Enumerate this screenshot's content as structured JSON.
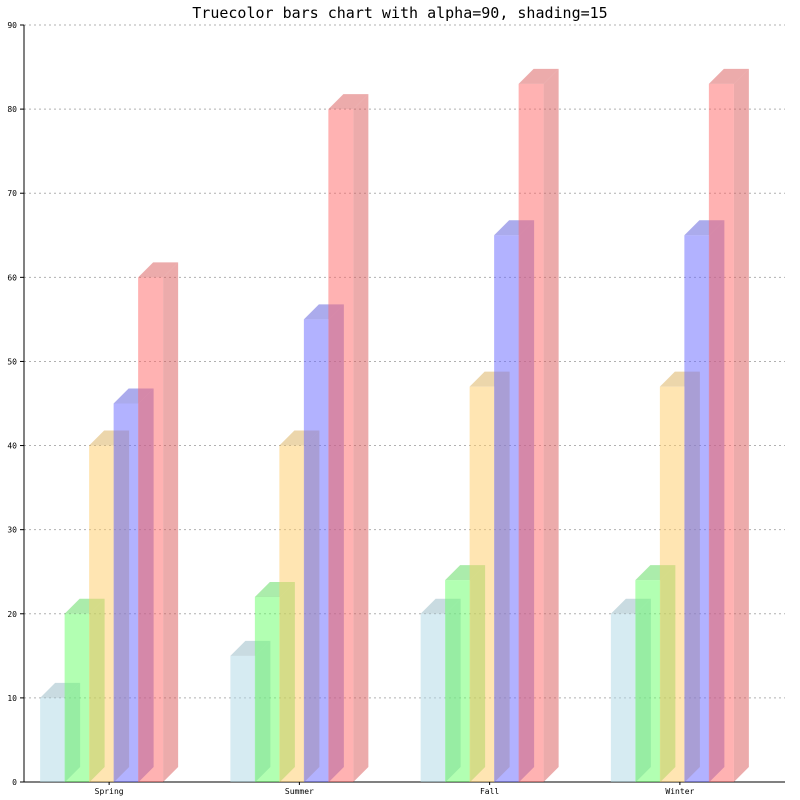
{
  "chart_data": {
    "type": "bar",
    "title": "Truecolor bars chart with alpha=90, shading=15",
    "xlabel": "",
    "ylabel": "",
    "ylim": [
      0,
      90
    ],
    "y_ticks": [
      "0",
      "10",
      "20",
      "30",
      "40",
      "50",
      "60",
      "70",
      "80",
      "90"
    ],
    "grid": true,
    "categories": [
      "Spring",
      "Summer",
      "Fall",
      "Winter"
    ],
    "series": [
      {
        "color": "#add8e6",
        "values": [
          10,
          15,
          20,
          20
        ]
      },
      {
        "color": "#66ff66",
        "values": [
          20,
          22,
          24,
          24
        ]
      },
      {
        "color": "#ffcc66",
        "values": [
          40,
          40,
          47,
          47
        ]
      },
      {
        "color": "#6666ff",
        "values": [
          45,
          55,
          65,
          65
        ]
      },
      {
        "color": "#ff6666",
        "values": [
          60,
          80,
          83,
          83
        ]
      }
    ]
  }
}
